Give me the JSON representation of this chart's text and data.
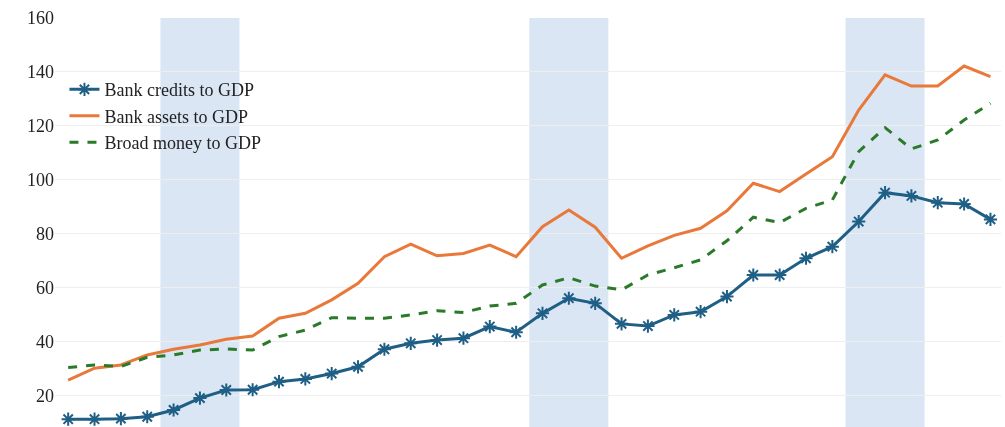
{
  "chart_data": {
    "type": "line",
    "categories": [
      null,
      null,
      null,
      null,
      null,
      null,
      null,
      null,
      null,
      null,
      null,
      null,
      null,
      null,
      null,
      null,
      null,
      null,
      null,
      null,
      null,
      null,
      null,
      null,
      null,
      null,
      null,
      null,
      null,
      null,
      null,
      null,
      null,
      null,
      null,
      null
    ],
    "ylim": [
      8.5,
      160
    ],
    "yticks": [
      20,
      40,
      60,
      80,
      100,
      120,
      140,
      160
    ],
    "grid": "y",
    "legend": "left",
    "series": [
      {
        "name": "Bank credits to GDP",
        "color": "#1f5f86",
        "marker": "cross",
        "line_style": "solid",
        "values": [
          11.4,
          11.4,
          11.6,
          12.3,
          14.8,
          19.2,
          22.2,
          22.3,
          25.3,
          26.3,
          28.3,
          30.8,
          37.3,
          39.5,
          40.7,
          41.4,
          45.7,
          43.6,
          50.6,
          56.2,
          54.3,
          46.7,
          45.9,
          50,
          51.2,
          56.8,
          64.8,
          64.8,
          71,
          75.3,
          84.6,
          95.3,
          94.1,
          91.6,
          91.1,
          85.4
        ]
      },
      {
        "name": "Bank assets to GDP",
        "color": "#e8793a",
        "marker": "none",
        "line_style": "solid",
        "values": [
          25.9,
          30.3,
          31.5,
          35.2,
          37.3,
          38.9,
          41,
          42.2,
          48.8,
          50.6,
          55.6,
          61.7,
          71.6,
          76.2,
          71.9,
          72.8,
          75.9,
          71.6,
          82.7,
          88.9,
          82.5,
          71,
          75.6,
          79.5,
          82.1,
          88.6,
          98.8,
          95.7,
          102.2,
          108.6,
          125.9,
          138.9,
          134.8,
          134.8,
          142.2,
          138.3
        ]
      },
      {
        "name": "Broad money to GDP",
        "color": "#2a7a2a",
        "marker": "none",
        "line_style": "dashed",
        "values": [
          30.5,
          31.5,
          30.9,
          34.3,
          35.2,
          37,
          37.4,
          37,
          42,
          44.4,
          49,
          48.8,
          48.8,
          50,
          51.6,
          50.9,
          53.3,
          54.3,
          61.1,
          63.8,
          60.7,
          59.3,
          64.8,
          67.5,
          70.4,
          77.5,
          86.2,
          84.2,
          89.5,
          92.6,
          110.5,
          119.4,
          111.5,
          114.8,
          122.2,
          128.4
        ]
      }
    ]
  }
}
